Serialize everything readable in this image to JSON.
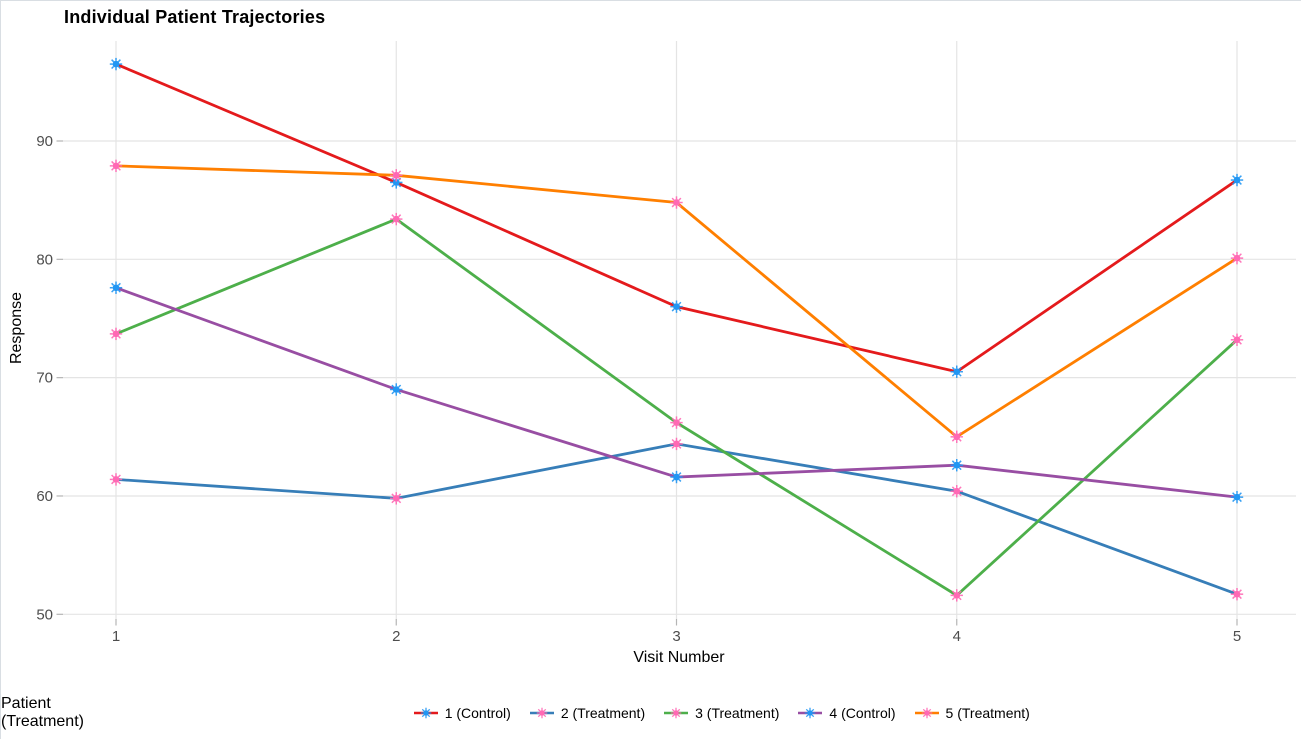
{
  "page": {
    "title": "Individual Patient Trajectories"
  },
  "chart_data": {
    "type": "line",
    "title": "Individual Patient Trajectories",
    "xlabel": "Visit Number",
    "ylabel": "Response",
    "legend_title": "Patient (Treatment)",
    "legend_position": "bottom",
    "grid": true,
    "x": [
      1,
      2,
      3,
      4,
      5
    ],
    "x_ticks": [
      "1",
      "2",
      "3",
      "4",
      "5"
    ],
    "y_ticks": [
      50,
      60,
      70,
      80,
      90
    ],
    "xlim": [
      0.8,
      5.2
    ],
    "ylim": [
      49.6,
      98.5
    ],
    "series": [
      {
        "name": "1 (Control)",
        "patient": "1",
        "treatment": "Control",
        "line_color": "#E41A1C",
        "point_color": "#2196F3",
        "values": [
          96.5,
          86.5,
          76.0,
          70.5,
          86.7
        ]
      },
      {
        "name": "2 (Treatment)",
        "patient": "2",
        "treatment": "Treatment",
        "line_color": "#377EB8",
        "point_color": "#FF69B4",
        "values": [
          61.4,
          59.8,
          64.4,
          60.4,
          51.7
        ]
      },
      {
        "name": "3 (Treatment)",
        "patient": "3",
        "treatment": "Treatment",
        "line_color": "#4DAF4A",
        "point_color": "#FF69B4",
        "values": [
          73.7,
          83.4,
          66.2,
          51.6,
          73.2
        ]
      },
      {
        "name": "4 (Control)",
        "patient": "4",
        "treatment": "Control",
        "line_color": "#984EA3",
        "point_color": "#2196F3",
        "values": [
          77.6,
          69.0,
          61.6,
          62.6,
          59.9
        ]
      },
      {
        "name": "5 (Treatment)",
        "patient": "5",
        "treatment": "Treatment",
        "line_color": "#FF7F00",
        "point_color": "#FF69B4",
        "values": [
          87.9,
          87.1,
          84.8,
          65.0,
          80.1
        ]
      }
    ],
    "colors": {
      "control_point": "#2196F3",
      "treatment_point": "#FF69B4",
      "gridline": "#e4e4e4",
      "tick_text": "#4d4d4d"
    }
  }
}
